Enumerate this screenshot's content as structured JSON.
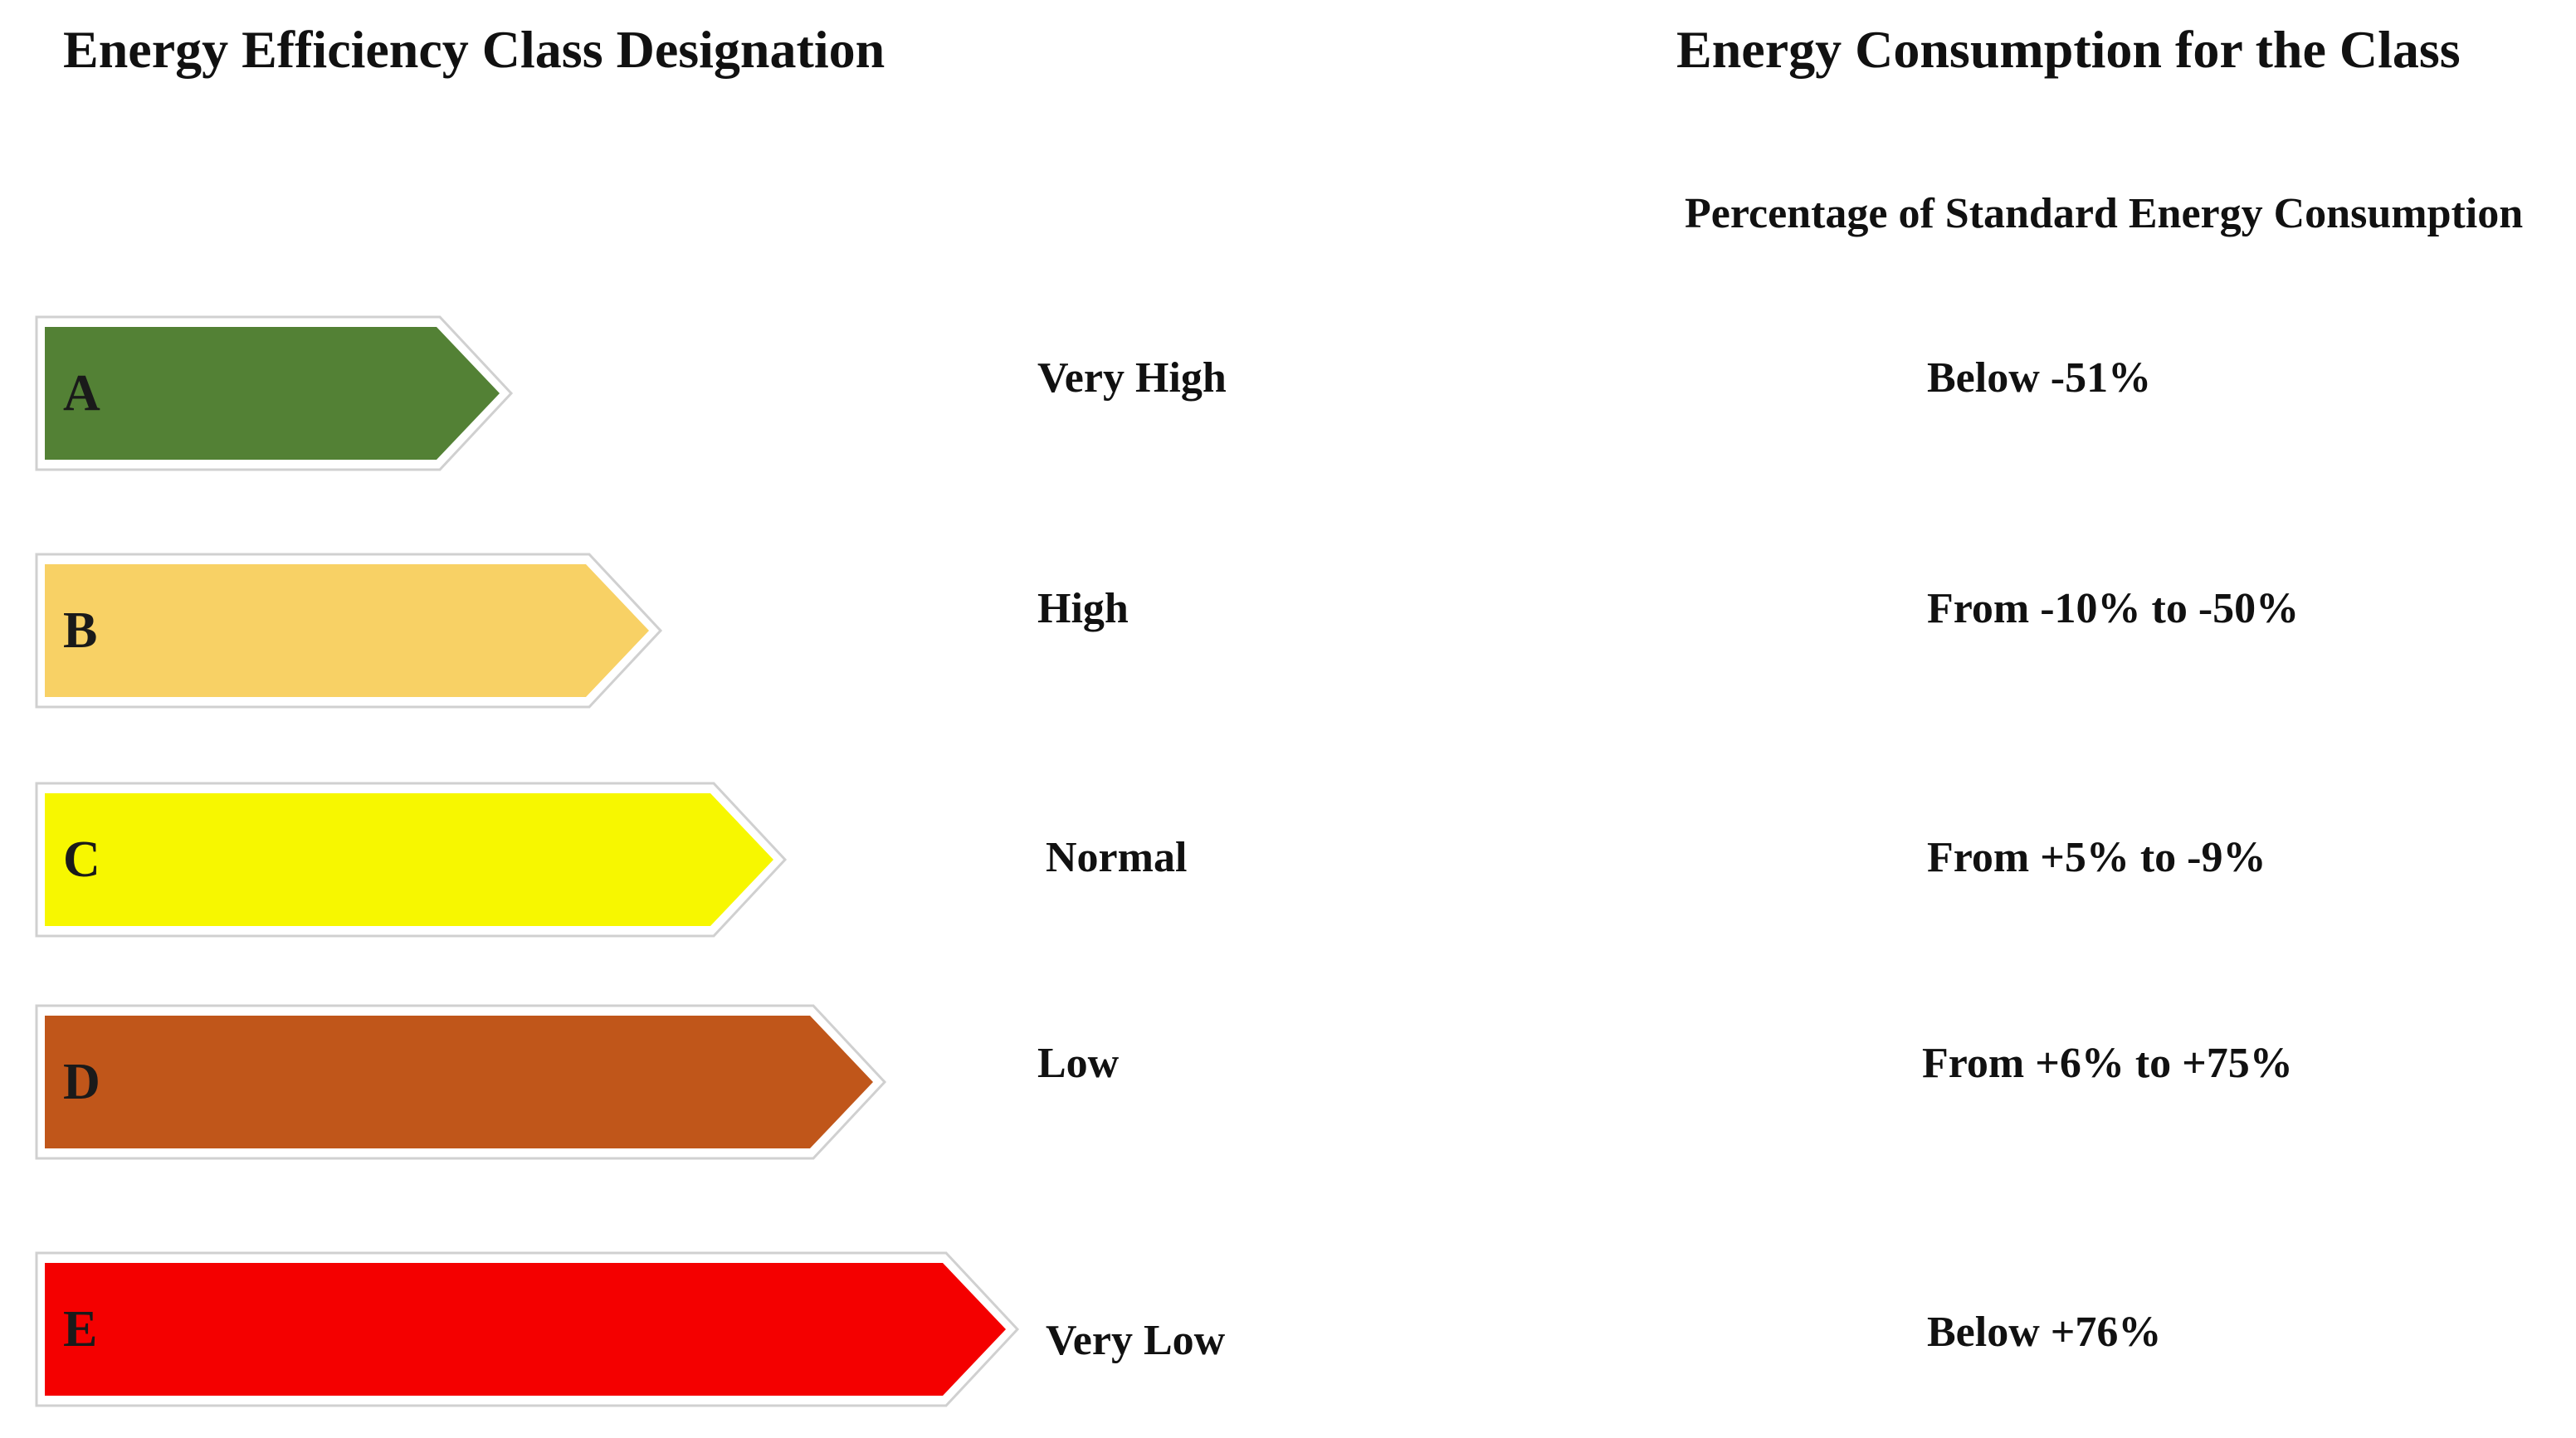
{
  "headings": {
    "designation": "Energy Efficiency Class Designation",
    "consumption": "Energy Consumption for the Class",
    "percentage": "Percentage of Standard  Energy  Consumption"
  },
  "classes": [
    {
      "letter": "A",
      "rating": "Very  High",
      "range": "Below -51%",
      "color": "#538135"
    },
    {
      "letter": "B",
      "rating": "High",
      "range": "From -10% to -50%",
      "color": "#f8d165"
    },
    {
      "letter": "C",
      "rating": "Normal",
      "range": "From +5% to -9%",
      "color": "#f7f700"
    },
    {
      "letter": "D",
      "rating": "Low",
      "range": "From +6% to +75%",
      "color": "#c0561a"
    },
    {
      "letter": "E",
      "rating": "Very  Low",
      "range": "Below +76%",
      "color": "#f40000"
    }
  ]
}
